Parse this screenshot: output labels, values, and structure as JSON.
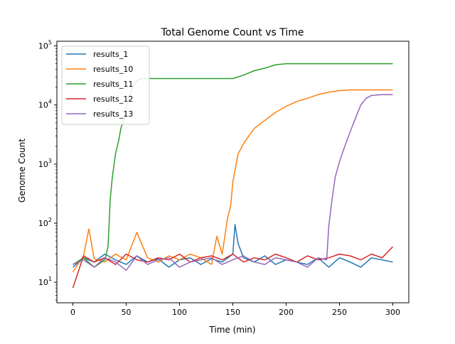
{
  "chart_data": {
    "type": "line",
    "title": "Total Genome Count vs Time",
    "xlabel": "Time (min)",
    "ylabel": "Genome Count",
    "xlim": [
      -15,
      315
    ],
    "ylim": [
      4.5,
      120000
    ],
    "yscale": "log",
    "grid": false,
    "legend_position": "top-left",
    "x_ticks": [
      0,
      50,
      100,
      150,
      200,
      250,
      300
    ],
    "y_ticks": [
      {
        "value": 10,
        "base": "10",
        "exp": "1"
      },
      {
        "value": 100,
        "base": "10",
        "exp": "2"
      },
      {
        "value": 1000,
        "base": "10",
        "exp": "3"
      },
      {
        "value": 10000,
        "base": "10",
        "exp": "4"
      },
      {
        "value": 100000,
        "base": "10",
        "exp": "5"
      }
    ],
    "series": [
      {
        "name": "results_1",
        "color": "#1f77b4",
        "x": [
          0,
          10,
          20,
          30,
          40,
          50,
          60,
          70,
          80,
          90,
          100,
          110,
          120,
          130,
          140,
          150,
          152,
          155,
          160,
          170,
          180,
          190,
          200,
          210,
          220,
          230,
          240,
          250,
          260,
          270,
          280,
          290,
          300
        ],
        "y": [
          18,
          26,
          22,
          30,
          24,
          20,
          28,
          22,
          25,
          18,
          24,
          26,
          20,
          25,
          22,
          30,
          95,
          45,
          26,
          22,
          28,
          20,
          24,
          22,
          20,
          26,
          18,
          26,
          22,
          18,
          26,
          24,
          22
        ]
      },
      {
        "name": "results_10",
        "color": "#ff7f0e",
        "x": [
          0,
          10,
          15,
          20,
          30,
          40,
          50,
          60,
          70,
          80,
          90,
          100,
          110,
          120,
          130,
          135,
          140,
          145,
          148,
          150,
          155,
          160,
          165,
          170,
          180,
          190,
          200,
          210,
          220,
          230,
          240,
          250,
          260,
          270,
          280,
          290,
          300
        ],
        "y": [
          15,
          28,
          80,
          25,
          22,
          30,
          24,
          70,
          26,
          22,
          28,
          24,
          30,
          26,
          20,
          60,
          30,
          120,
          200,
          500,
          1500,
          2200,
          3000,
          4000,
          5500,
          7500,
          9500,
          11500,
          13000,
          15000,
          16500,
          17500,
          18000,
          18000,
          18000,
          18000,
          18000
        ]
      },
      {
        "name": "results_11",
        "color": "#2ca02c",
        "x": [
          0,
          10,
          20,
          30,
          33,
          35,
          37,
          40,
          43,
          45,
          48,
          50,
          53,
          56,
          60,
          65,
          70,
          80,
          90,
          100,
          110,
          120,
          130,
          140,
          150,
          160,
          170,
          180,
          190,
          200,
          210,
          220,
          230,
          240,
          250,
          260,
          270,
          280,
          290,
          300
        ],
        "y": [
          20,
          26,
          18,
          24,
          40,
          250,
          600,
          1500,
          2500,
          4000,
          6000,
          9000,
          14000,
          20000,
          26000,
          28000,
          28000,
          28000,
          28000,
          28000,
          28000,
          28000,
          28000,
          28000,
          28000,
          32000,
          38000,
          42000,
          48000,
          50000,
          50000,
          50000,
          50000,
          50000,
          50000,
          50000,
          50000,
          50000,
          50000,
          50000
        ]
      },
      {
        "name": "results_12",
        "color": "#d62728",
        "x": [
          0,
          10,
          20,
          30,
          40,
          50,
          60,
          70,
          80,
          90,
          100,
          110,
          120,
          130,
          140,
          150,
          160,
          170,
          180,
          190,
          200,
          210,
          220,
          230,
          240,
          250,
          260,
          270,
          280,
          290,
          300
        ],
        "y": [
          8,
          28,
          22,
          26,
          20,
          30,
          24,
          22,
          26,
          24,
          30,
          22,
          26,
          28,
          24,
          30,
          22,
          26,
          24,
          30,
          26,
          22,
          28,
          24,
          26,
          30,
          28,
          24,
          30,
          26,
          40
        ]
      },
      {
        "name": "results_13",
        "color": "#9467bd",
        "x": [
          0,
          10,
          20,
          30,
          40,
          50,
          60,
          70,
          80,
          90,
          100,
          110,
          120,
          130,
          140,
          150,
          160,
          170,
          180,
          190,
          200,
          210,
          220,
          230,
          238,
          240,
          243,
          246,
          250,
          255,
          260,
          265,
          270,
          275,
          280,
          290,
          300
        ],
        "y": [
          20,
          24,
          18,
          26,
          22,
          16,
          28,
          20,
          24,
          26,
          18,
          22,
          24,
          26,
          20,
          24,
          28,
          22,
          20,
          26,
          24,
          22,
          18,
          26,
          24,
          90,
          250,
          600,
          1100,
          2000,
          3500,
          6000,
          10000,
          13000,
          14500,
          15000,
          15000
        ]
      }
    ]
  }
}
